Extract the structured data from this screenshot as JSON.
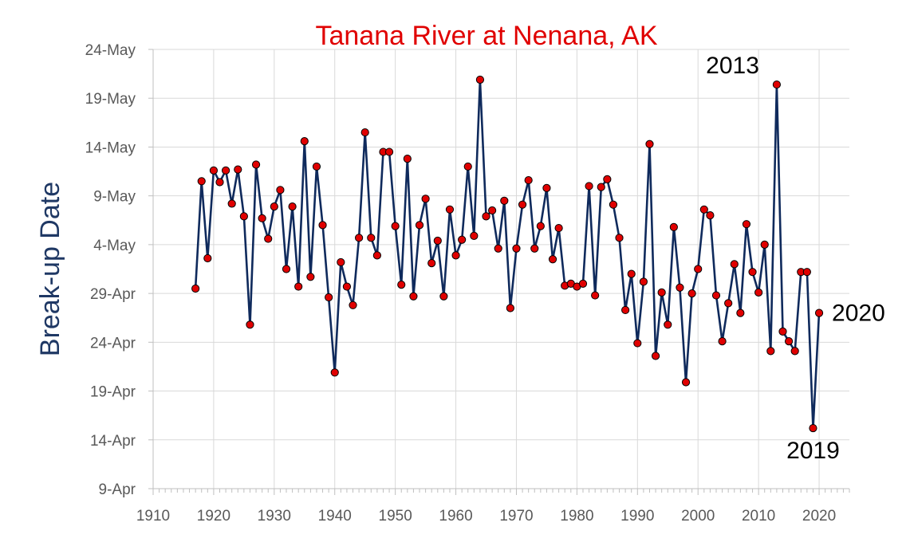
{
  "chart_data": {
    "type": "line",
    "title": "Tanana River at Nenana, AK",
    "xlabel": "",
    "ylabel": "Break-up Date",
    "xlim": [
      1910,
      2025
    ],
    "x_ticks": [
      1910,
      1920,
      1930,
      1940,
      1950,
      1960,
      1970,
      1980,
      1990,
      2000,
      2010,
      2020
    ],
    "ylim_day_of_year": [
      99,
      144
    ],
    "y_ticks": [
      {
        "label": "9-Apr",
        "day_of_year": 99
      },
      {
        "label": "14-Apr",
        "day_of_year": 104
      },
      {
        "label": "19-Apr",
        "day_of_year": 109
      },
      {
        "label": "24-Apr",
        "day_of_year": 114
      },
      {
        "label": "29-Apr",
        "day_of_year": 119
      },
      {
        "label": "4-May",
        "day_of_year": 124
      },
      {
        "label": "9-May",
        "day_of_year": 129
      },
      {
        "label": "14-May",
        "day_of_year": 134
      },
      {
        "label": "19-May",
        "day_of_year": 139
      },
      {
        "label": "24-May",
        "day_of_year": 144
      }
    ],
    "grid": true,
    "legend": "none",
    "colors": {
      "line": "#0f2a5c",
      "marker": "#e00000",
      "marker_edge": "#000000",
      "title": "#e00000",
      "ylabel": "#1f3864"
    },
    "series": [
      {
        "name": "",
        "x": [
          1917,
          1918,
          1919,
          1920,
          1921,
          1922,
          1923,
          1924,
          1925,
          1926,
          1927,
          1928,
          1929,
          1930,
          1931,
          1932,
          1933,
          1934,
          1935,
          1936,
          1937,
          1938,
          1939,
          1940,
          1941,
          1942,
          1943,
          1944,
          1945,
          1946,
          1947,
          1948,
          1949,
          1950,
          1951,
          1952,
          1953,
          1954,
          1955,
          1956,
          1957,
          1958,
          1959,
          1960,
          1961,
          1962,
          1963,
          1964,
          1965,
          1966,
          1967,
          1968,
          1969,
          1970,
          1971,
          1972,
          1973,
          1974,
          1975,
          1976,
          1977,
          1978,
          1979,
          1980,
          1981,
          1982,
          1983,
          1984,
          1985,
          1986,
          1987,
          1988,
          1989,
          1990,
          1991,
          1992,
          1993,
          1994,
          1995,
          1996,
          1997,
          1998,
          1999,
          2000,
          2001,
          2002,
          2003,
          2004,
          2005,
          2006,
          2007,
          2008,
          2009,
          2010,
          2011,
          2012,
          2013,
          2014,
          2015,
          2016,
          2017,
          2018,
          2019,
          2020
        ],
        "day_of_year": [
          119.5,
          130.5,
          122.6,
          131.6,
          130.4,
          131.6,
          128.2,
          131.7,
          126.9,
          115.8,
          132.2,
          126.7,
          124.6,
          127.9,
          129.6,
          121.5,
          127.9,
          119.7,
          134.6,
          120.7,
          132.0,
          126.0,
          118.6,
          110.9,
          122.2,
          119.7,
          117.8,
          124.7,
          135.5,
          124.7,
          122.9,
          133.5,
          133.5,
          125.9,
          119.9,
          132.8,
          118.7,
          126.0,
          128.7,
          122.1,
          124.4,
          118.7,
          127.6,
          122.9,
          124.5,
          132.0,
          124.9,
          140.9,
          126.9,
          127.5,
          123.6,
          128.5,
          117.5,
          123.6,
          128.1,
          130.6,
          123.6,
          125.9,
          129.8,
          122.5,
          125.7,
          119.8,
          120.0,
          119.7,
          120.0,
          130.0,
          118.8,
          129.9,
          130.7,
          128.1,
          124.7,
          117.3,
          121.0,
          113.9,
          120.2,
          134.3,
          112.6,
          119.1,
          115.8,
          125.8,
          119.6,
          109.9,
          119.0,
          121.5,
          127.6,
          127.0,
          118.8,
          114.1,
          118.0,
          122.0,
          117.0,
          126.1,
          121.2,
          119.1,
          124.0,
          113.1,
          140.4,
          115.1,
          114.1,
          113.1,
          121.2,
          121.2,
          105.2,
          117.0
        ]
      }
    ],
    "annotations": [
      {
        "text": "2013",
        "x": 2013
      },
      {
        "text": "2020",
        "x": 2020
      },
      {
        "text": "2019",
        "x": 2019
      }
    ]
  }
}
